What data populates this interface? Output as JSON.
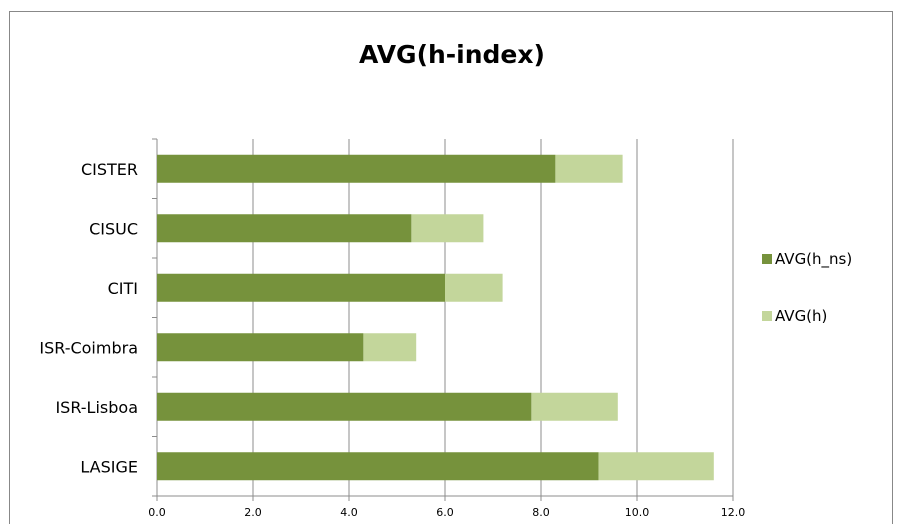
{
  "chart_data": {
    "type": "bar",
    "orientation": "horizontal",
    "stacked": true,
    "title": "AVG(h-index)",
    "xlabel": "",
    "ylabel": "",
    "categories": [
      "CISTER",
      "CISUC",
      "CITI",
      "ISR-Coimbra",
      "ISR-Lisboa",
      "LASIGE"
    ],
    "series": [
      {
        "name": "AVG(h_ns)",
        "color": "#76923c",
        "values": [
          8.3,
          5.3,
          6.0,
          4.3,
          7.8,
          9.2
        ]
      },
      {
        "name": "AVG(h)",
        "color": "#c3d69b",
        "values": [
          1.4,
          1.5,
          1.2,
          1.1,
          1.8,
          2.4
        ]
      }
    ],
    "xlim": [
      0,
      12
    ],
    "xticks": [
      "0.0",
      "2.0",
      "4.0",
      "6.0",
      "8.0",
      "10.0",
      "12.0"
    ],
    "grid": true,
    "legend_position": "right"
  }
}
